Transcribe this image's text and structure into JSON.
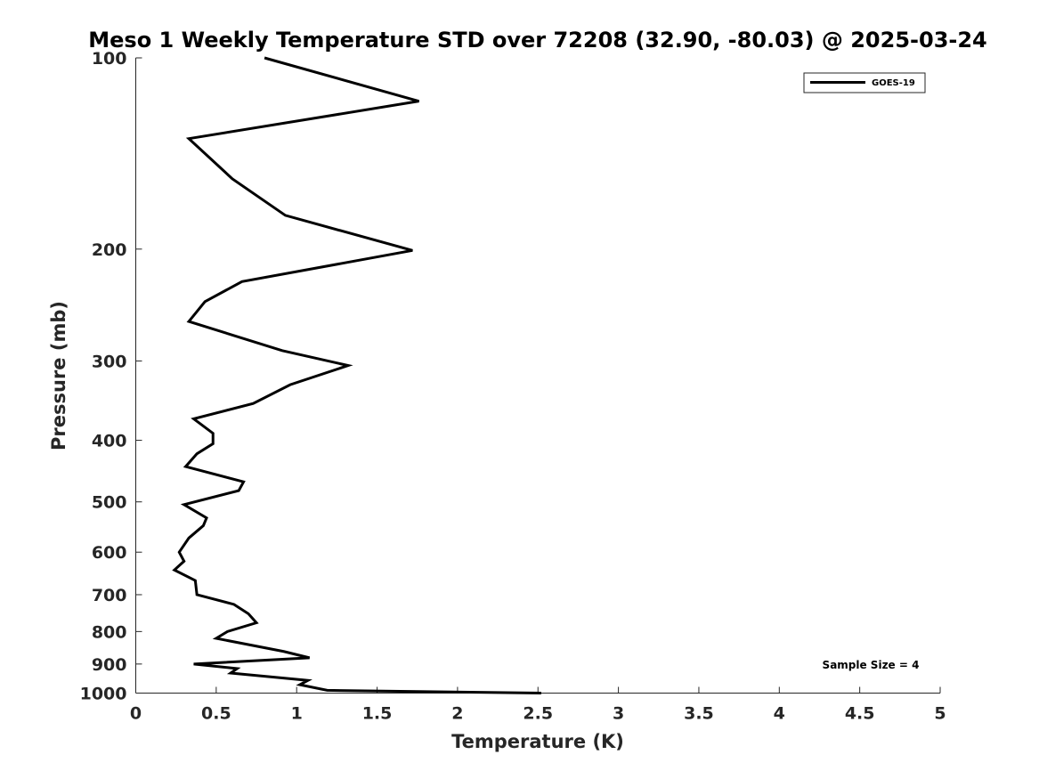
{
  "chart_data": {
    "type": "line",
    "title": "Meso 1 Weekly Temperature STD over 72208 (32.90, -80.03) @ 2025-03-24",
    "xlabel": "Temperature (K)",
    "ylabel": "Pressure (mb)",
    "xlim": [
      0,
      5
    ],
    "ylim": [
      100,
      1000
    ],
    "y_scale": "log",
    "y_reversed": true,
    "grid": false,
    "legend_position": "top-right",
    "x_ticks": [
      "0",
      "0.5",
      "1",
      "1.5",
      "2",
      "2.5",
      "3",
      "3.5",
      "4",
      "4.5",
      "5"
    ],
    "y_ticks": [
      "100",
      "200",
      "300",
      "400",
      "500",
      "600",
      "700",
      "800",
      "900",
      "1000"
    ],
    "series": [
      {
        "name": "GOES-19",
        "color": "#000000",
        "x": [
          0.8,
          1.76,
          0.33,
          0.6,
          0.93,
          1.72,
          0.66,
          0.43,
          0.33,
          0.91,
          1.32,
          0.96,
          0.73,
          0.36,
          0.48,
          0.48,
          0.38,
          0.31,
          0.67,
          0.64,
          0.3,
          0.44,
          0.42,
          0.33,
          0.27,
          0.3,
          0.24,
          0.37,
          0.38,
          0.61,
          0.7,
          0.75,
          0.57,
          0.5,
          0.92,
          1.08,
          0.36,
          0.63,
          0.59,
          1.07,
          1.02,
          1.19,
          2.52
        ],
        "y": [
          100,
          117,
          134,
          155,
          177,
          201,
          225,
          242,
          260,
          289,
          305,
          327,
          350,
          370,
          390,
          405,
          420,
          440,
          465,
          480,
          505,
          530,
          545,
          570,
          600,
          620,
          640,
          665,
          700,
          725,
          750,
          775,
          800,
          820,
          860,
          880,
          900,
          915,
          930,
          955,
          970,
          990,
          1000
        ]
      }
    ],
    "annotations": [
      "Sample Size = 4"
    ]
  }
}
